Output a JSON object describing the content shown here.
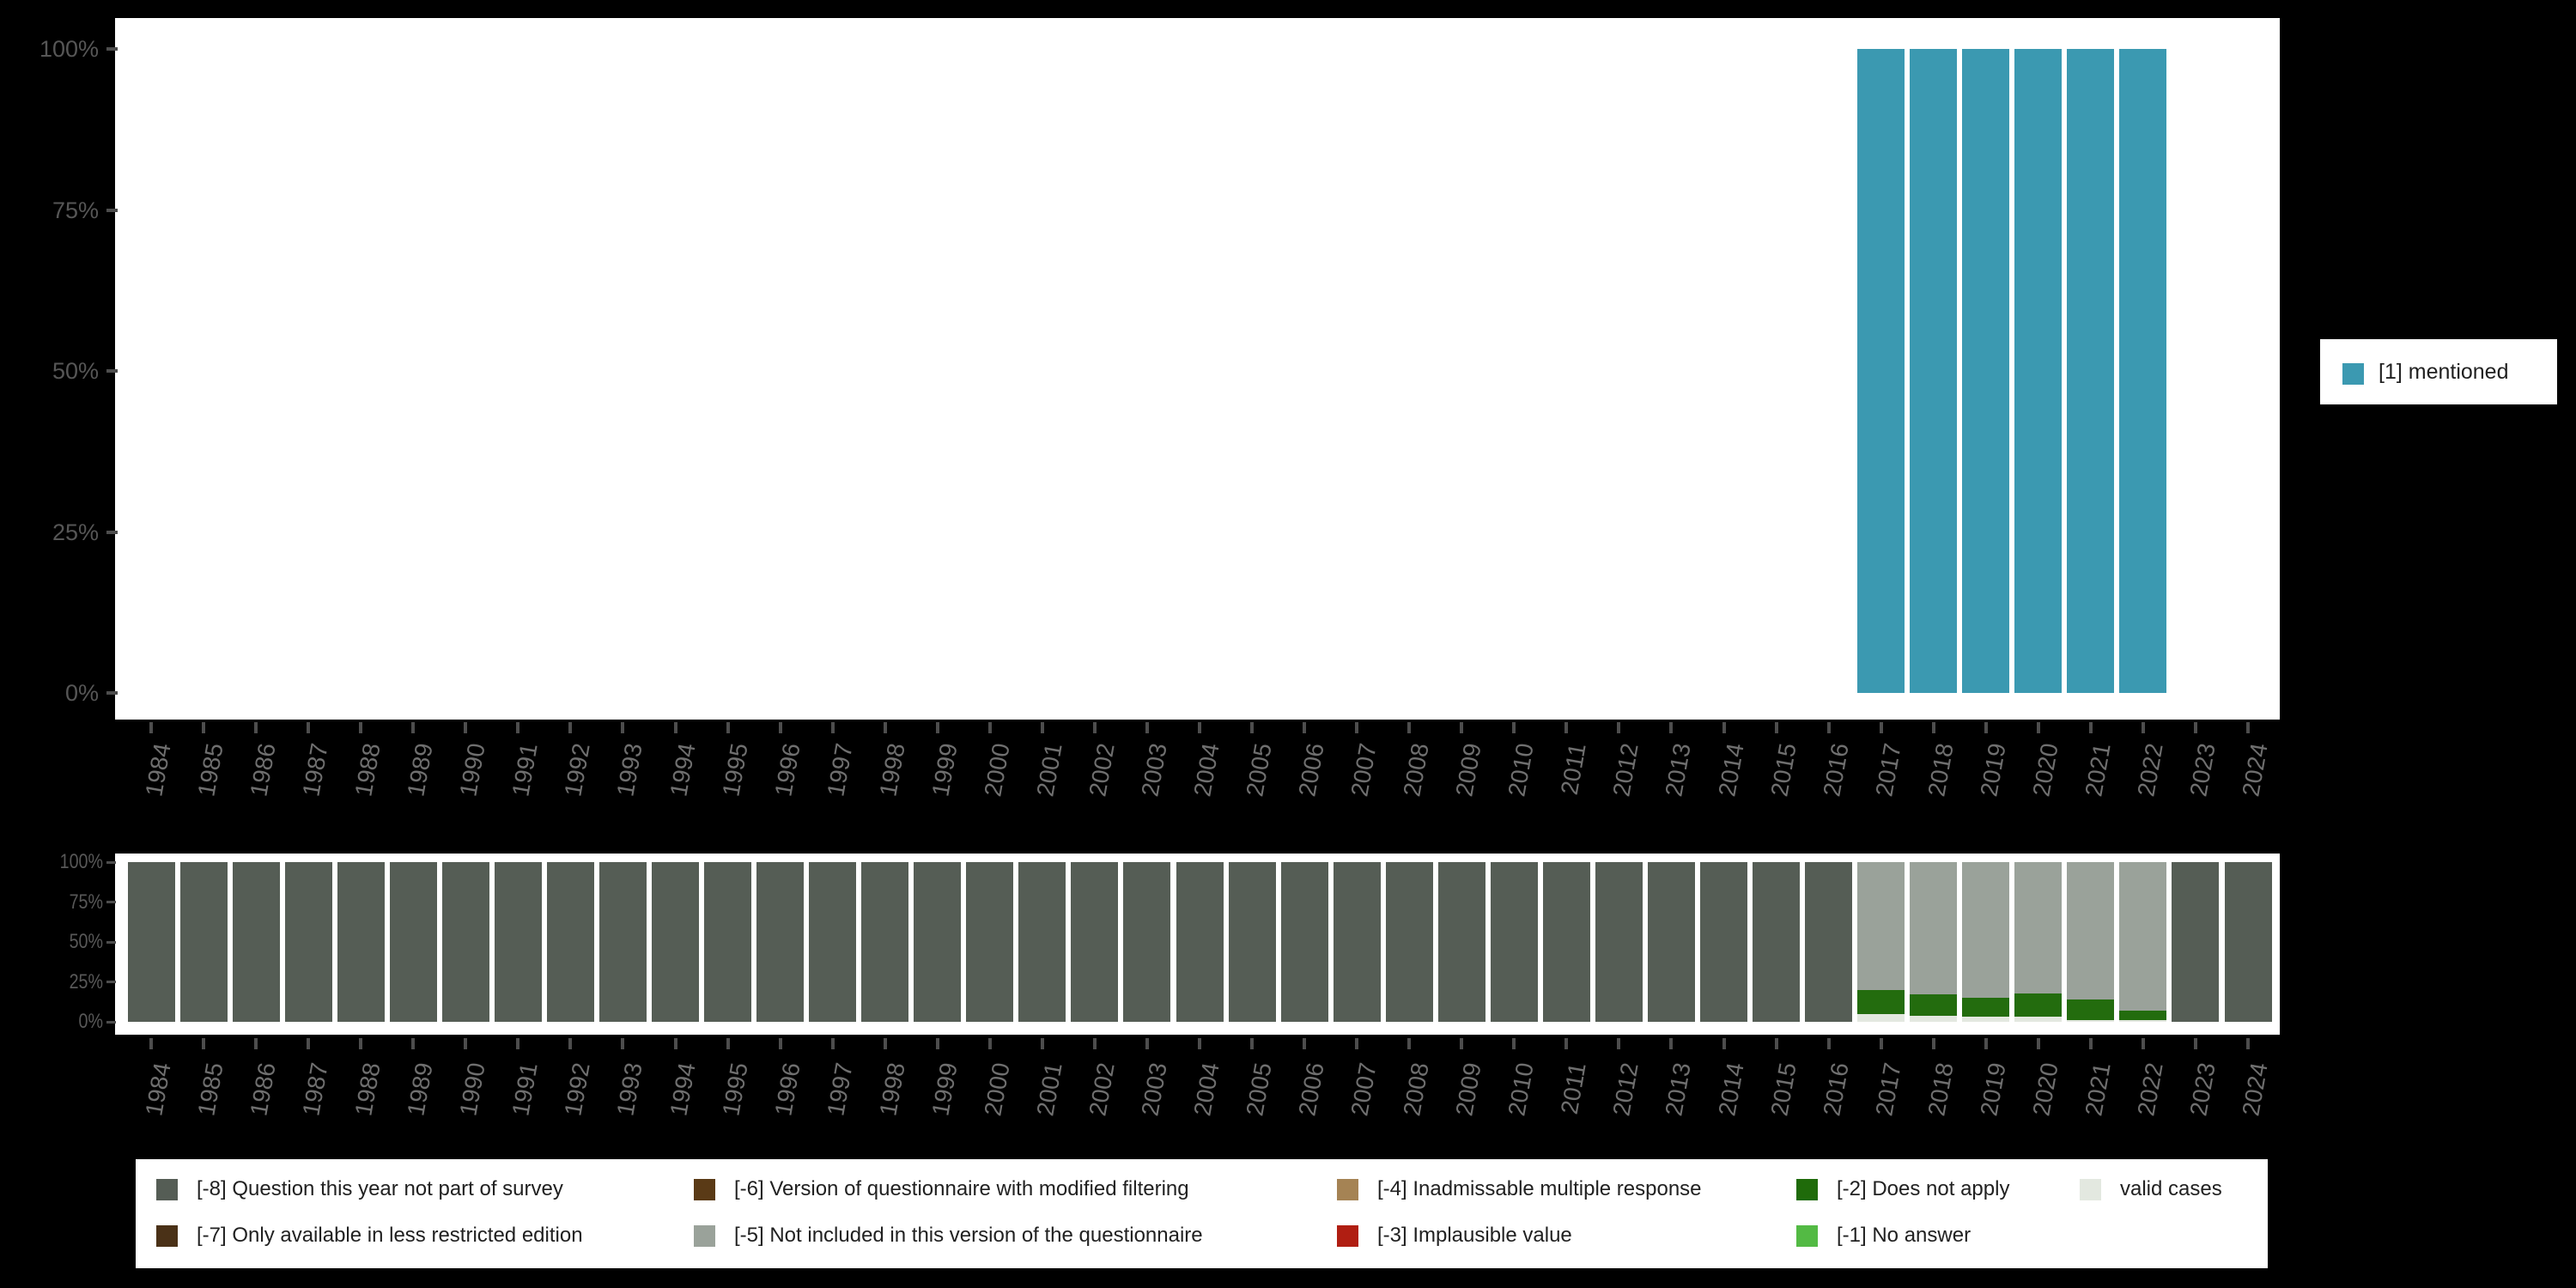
{
  "background_color": "#000000",
  "colors": {
    "plot_background": "#ffffff",
    "mentioned_teal": "#3b99b1",
    "not_part_of_survey_gray": "#555d55",
    "less_restricted_brown": "#4a3117",
    "modified_filtering_brown": "#5a3a16",
    "not_in_version_gray": "#9aa29a",
    "inadmissable_tan": "#a58354",
    "implausible_red": "#b01e12",
    "does_not_apply_green": "#1f6b0a",
    "no_answer_green": "#53ba44",
    "valid_cases_light": "#e3e8e0",
    "axis_label_gray": "#565656",
    "year_label_gray": "#6f6f6f",
    "tick_gray": "#4d4d4d",
    "legend_text": "#212121"
  },
  "legend_top": {
    "label": "[1] mentioned",
    "color": "#3b99b1"
  },
  "legend_bottom": {
    "items": [
      {
        "label": "[-8] Question this year not part of survey",
        "color": "#555d55"
      },
      {
        "label": "[-7] Only available in less restricted edition",
        "color": "#4a3117"
      },
      {
        "label": "[-6] Version of questionnaire with modified filtering",
        "color": "#5a3a16"
      },
      {
        "label": "[-5] Not included in this version of the questionnaire",
        "color": "#9aa29a"
      },
      {
        "label": "[-4] Inadmissable multiple response",
        "color": "#a58354"
      },
      {
        "label": "[-3] Implausible value",
        "color": "#b01e12"
      },
      {
        "label": "[-2] Does not apply",
        "color": "#1f6b0a"
      },
      {
        "label": "[-1] No answer",
        "color": "#53ba44"
      },
      {
        "label": "valid cases",
        "color": "#e3e8e0"
      }
    ]
  },
  "chart_data": [
    {
      "type": "bar",
      "title": "",
      "xlabel": "",
      "ylabel": "",
      "ylim": [
        0,
        100
      ],
      "grid": false,
      "legend_position": "right",
      "y_tick_labels": [
        "100%",
        "75%",
        "50%",
        "25%",
        "0%"
      ],
      "years": [
        "1984",
        "1985",
        "1986",
        "1987",
        "1988",
        "1989",
        "1990",
        "1991",
        "1992",
        "1993",
        "1994",
        "1995",
        "1996",
        "1997",
        "1998",
        "1999",
        "2000",
        "2001",
        "2002",
        "2003",
        "2004",
        "2005",
        "2006",
        "2007",
        "2008",
        "2009",
        "2010",
        "2011",
        "2012",
        "2013",
        "2014",
        "2015",
        "2016",
        "2017",
        "2018",
        "2019",
        "2020",
        "2021",
        "2022",
        "2023",
        "2024"
      ],
      "series": [
        {
          "name": "[1] mentioned",
          "color": "#3b99b1",
          "values_pct": [
            0,
            0,
            0,
            0,
            0,
            0,
            0,
            0,
            0,
            0,
            0,
            0,
            0,
            0,
            0,
            0,
            0,
            0,
            0,
            0,
            0,
            0,
            0,
            0,
            0,
            0,
            0,
            0,
            0,
            0,
            0,
            0,
            0,
            100,
            100,
            100,
            100,
            100,
            100,
            0,
            0
          ]
        }
      ]
    },
    {
      "type": "stacked-bar",
      "title": "",
      "xlabel": "",
      "ylabel": "",
      "ylim": [
        0,
        100
      ],
      "grid": false,
      "legend_position": "bottom",
      "y_tick_labels": [
        "100%",
        "75%",
        "50%",
        "25%",
        "0%"
      ],
      "years": [
        "1984",
        "1985",
        "1986",
        "1987",
        "1988",
        "1989",
        "1990",
        "1991",
        "1992",
        "1993",
        "1994",
        "1995",
        "1996",
        "1997",
        "1998",
        "1999",
        "2000",
        "2001",
        "2002",
        "2003",
        "2004",
        "2005",
        "2006",
        "2007",
        "2008",
        "2009",
        "2010",
        "2011",
        "2012",
        "2013",
        "2014",
        "2015",
        "2016",
        "2017",
        "2018",
        "2019",
        "2020",
        "2021",
        "2022",
        "2023",
        "2024"
      ],
      "stack_order_note": "bottom to top",
      "series": [
        {
          "name": "valid cases",
          "color": "#e3e8e0",
          "values_pct": [
            0,
            0,
            0,
            0,
            0,
            0,
            0,
            0,
            0,
            0,
            0,
            0,
            0,
            0,
            0,
            0,
            0,
            0,
            0,
            0,
            0,
            0,
            0,
            0,
            0,
            0,
            0,
            0,
            0,
            0,
            0,
            0,
            0,
            5,
            4,
            3,
            3,
            1,
            1,
            0,
            0
          ]
        },
        {
          "name": "[-2] Does not apply",
          "color": "#236c0e",
          "values_pct": [
            0,
            0,
            0,
            0,
            0,
            0,
            0,
            0,
            0,
            0,
            0,
            0,
            0,
            0,
            0,
            0,
            0,
            0,
            0,
            0,
            0,
            0,
            0,
            0,
            0,
            0,
            0,
            0,
            0,
            0,
            0,
            0,
            0,
            15,
            13,
            12,
            15,
            13,
            6,
            0,
            0
          ]
        },
        {
          "name": "[-5] Not included in this version of the questionnaire",
          "color": "#9aa29a",
          "values_pct": [
            0,
            0,
            0,
            0,
            0,
            0,
            0,
            0,
            0,
            0,
            0,
            0,
            0,
            0,
            0,
            0,
            0,
            0,
            0,
            0,
            0,
            0,
            0,
            0,
            0,
            0,
            0,
            0,
            0,
            0,
            0,
            0,
            0,
            80,
            83,
            85,
            82,
            86,
            93,
            0,
            0
          ]
        },
        {
          "name": "[-8] Question this year not part of survey",
          "color": "#555d55",
          "values_pct": [
            100,
            100,
            100,
            100,
            100,
            100,
            100,
            100,
            100,
            100,
            100,
            100,
            100,
            100,
            100,
            100,
            100,
            100,
            100,
            100,
            100,
            100,
            100,
            100,
            100,
            100,
            100,
            100,
            100,
            100,
            100,
            100,
            100,
            0,
            0,
            0,
            0,
            0,
            0,
            100,
            100
          ]
        }
      ]
    }
  ]
}
